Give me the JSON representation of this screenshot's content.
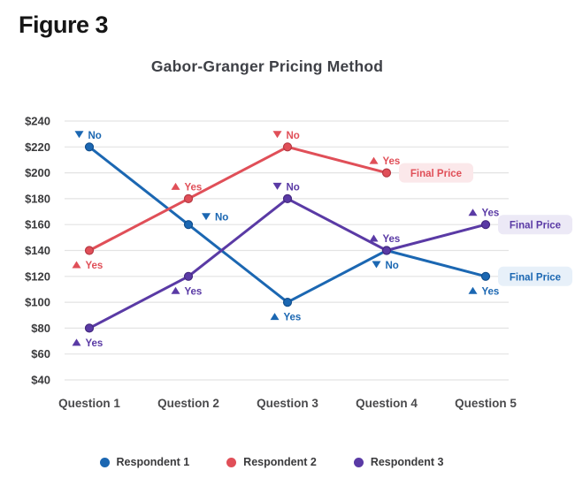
{
  "figure_label": "Figure 3",
  "chart_data": {
    "type": "line",
    "title": "Gabor-Granger Pricing Method",
    "categories": [
      "Question 1",
      "Question 2",
      "Question 3",
      "Question 4",
      "Question 5"
    ],
    "xlabel": "",
    "ylabel": "",
    "y_axis": {
      "min": 40,
      "max": 240,
      "ticks": [
        240,
        220,
        200,
        180,
        160,
        140,
        120,
        100,
        80,
        60,
        40
      ],
      "tick_labels": [
        "$240",
        "$220",
        "$200",
        "$180",
        "$160",
        "$140",
        "$120",
        "$100",
        "$80",
        "$60",
        "$40"
      ]
    },
    "grid": "horizontal",
    "legend_position": "bottom",
    "colors": {
      "grid": "#e3e3e3",
      "axis_label": "#3b3b3d",
      "category_label": "#4a4a4c",
      "background": "#ffffff"
    },
    "series": [
      {
        "name": "Respondent 1",
        "color": "#1b67b2",
        "point_border": "#114e8d",
        "badge_bg": "#e7f0f9",
        "values": [
          220,
          160,
          100,
          140,
          120
        ],
        "annotations": [
          {
            "answer": "No",
            "marker": "triangle-down",
            "placement": "above"
          },
          {
            "answer": "No",
            "marker": "triangle-down",
            "placement": "right"
          },
          {
            "answer": "Yes",
            "marker": "triangle-up",
            "placement": "below"
          },
          {
            "answer": "No",
            "marker": "triangle-down",
            "placement": "below"
          },
          {
            "answer": "Yes",
            "marker": "triangle-up",
            "placement": "below"
          }
        ],
        "final_price": {
          "label": "Final Price",
          "at_category_index": 4,
          "value": 120
        }
      },
      {
        "name": "Respondent 2",
        "color": "#e04f58",
        "point_border": "#b63943",
        "badge_bg": "#fbe8ea",
        "values": [
          140,
          180,
          220,
          200,
          null
        ],
        "annotations": [
          {
            "answer": "Yes",
            "marker": "triangle-up",
            "placement": "below"
          },
          {
            "answer": "Yes",
            "marker": "triangle-up",
            "placement": "above"
          },
          {
            "answer": "No",
            "marker": "triangle-down",
            "placement": "above"
          },
          {
            "answer": "Yes",
            "marker": "triangle-up",
            "placement": "above"
          },
          null
        ],
        "final_price": {
          "label": "Final Price",
          "at_category_index": 3,
          "value": 200
        }
      },
      {
        "name": "Respondent 3",
        "color": "#5a3aa5",
        "point_border": "#44297f",
        "badge_bg": "#ece9f6",
        "values": [
          80,
          120,
          180,
          140,
          160
        ],
        "annotations": [
          {
            "answer": "Yes",
            "marker": "triangle-up",
            "placement": "below"
          },
          {
            "answer": "Yes",
            "marker": "triangle-up",
            "placement": "below"
          },
          {
            "answer": "No",
            "marker": "triangle-down",
            "placement": "above"
          },
          {
            "answer": "Yes",
            "marker": "triangle-up",
            "placement": "above"
          },
          {
            "answer": "Yes",
            "marker": "triangle-up",
            "placement": "above"
          }
        ],
        "final_price": {
          "label": "Final Price",
          "at_category_index": 4,
          "value": 160
        }
      }
    ]
  }
}
